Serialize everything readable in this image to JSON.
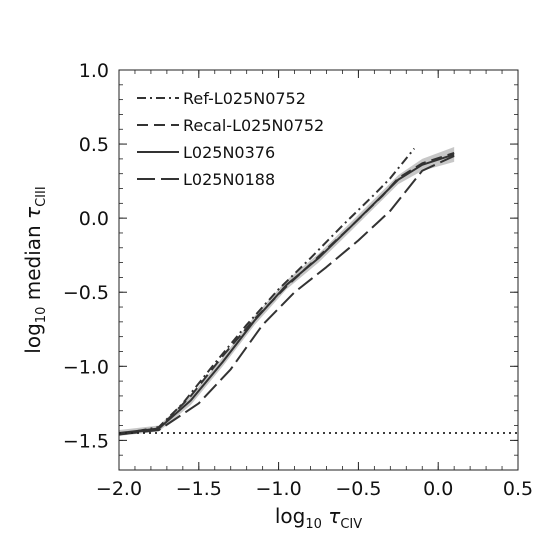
{
  "chart_data": {
    "type": "line",
    "xlabel": "log10 τCIV",
    "ylabel": "log10 median τCIII",
    "xlabel_parts": {
      "pre": "log",
      "sub": "10",
      "sym": "τ",
      "ion": "CIV"
    },
    "ylabel_parts": {
      "pre": "log",
      "sub": "10",
      "mid": "median",
      "sym": "τ",
      "ion": "CIII"
    },
    "xlim": [
      -2.0,
      0.5
    ],
    "ylim": [
      -1.7,
      1.0
    ],
    "xticks": [
      -2.0,
      -1.5,
      -1.0,
      -0.5,
      0.0,
      0.5
    ],
    "xtick_labels": [
      "−2.0",
      "−1.5",
      "−1.0",
      "−0.5",
      "0.0",
      "0.5"
    ],
    "yticks": [
      -1.5,
      -1.0,
      -0.5,
      0.0,
      0.5,
      1.0
    ],
    "ytick_labels": [
      "−1.5",
      "−1.0",
      "−0.5",
      "0.0",
      "0.5",
      "1.0"
    ],
    "grid": false,
    "legend_placement": "top-left",
    "series": [
      {
        "name": "Ref-L025N0752",
        "style": "dashdot",
        "color": "#333333",
        "x": [
          -2.0,
          -1.75,
          -1.6,
          -1.4,
          -1.2,
          -1.0,
          -0.8,
          -0.6,
          -0.4,
          -0.3,
          -0.15
        ],
        "y": [
          -1.46,
          -1.41,
          -1.25,
          -0.98,
          -0.72,
          -0.48,
          -0.27,
          -0.05,
          0.16,
          0.27,
          0.47
        ]
      },
      {
        "name": "Recal-L025N0752",
        "style": "dashed",
        "color": "#333333",
        "x": [
          -2.0,
          -1.75,
          -1.55,
          -1.35,
          -1.15,
          -0.95,
          -0.75,
          -0.55,
          -0.35,
          -0.25,
          -0.1,
          0.1
        ],
        "y": [
          -1.46,
          -1.42,
          -1.2,
          -0.93,
          -0.68,
          -0.46,
          -0.26,
          -0.06,
          0.15,
          0.27,
          0.37,
          0.44
        ]
      },
      {
        "name": "L025N0376",
        "style": "solid",
        "color": "#333333",
        "x": [
          -2.0,
          -1.75,
          -1.55,
          -1.35,
          -1.15,
          -0.95,
          -0.75,
          -0.55,
          -0.4,
          -0.25,
          -0.1,
          0.1
        ],
        "y": [
          -1.45,
          -1.42,
          -1.23,
          -0.97,
          -0.69,
          -0.45,
          -0.27,
          -0.06,
          0.1,
          0.26,
          0.36,
          0.43
        ],
        "band_upper": [
          -1.43,
          -1.4,
          -1.2,
          -0.94,
          -0.66,
          -0.42,
          -0.24,
          -0.03,
          0.13,
          0.29,
          0.4,
          0.48
        ],
        "band_lower": [
          -1.47,
          -1.44,
          -1.26,
          -1.0,
          -0.72,
          -0.48,
          -0.3,
          -0.09,
          0.07,
          0.23,
          0.32,
          0.38
        ],
        "band_color": "#bdbdbd"
      },
      {
        "name": "L025N0188",
        "style": "longdash",
        "color": "#333333",
        "x": [
          -2.0,
          -1.75,
          -1.5,
          -1.3,
          -1.1,
          -0.9,
          -0.7,
          -0.5,
          -0.3,
          -0.1,
          0.1
        ],
        "y": [
          -1.46,
          -1.43,
          -1.25,
          -1.02,
          -0.72,
          -0.5,
          -0.33,
          -0.15,
          0.05,
          0.32,
          0.42
        ]
      },
      {
        "name": "",
        "style": "dotted",
        "color": "#222222",
        "x": [
          -2.0,
          0.5
        ],
        "y": [
          -1.45,
          -1.45
        ]
      }
    ],
    "legend": [
      {
        "label": "Ref-L025N0752",
        "style": "dashdot"
      },
      {
        "label": "Recal-L025N0752",
        "style": "dashed"
      },
      {
        "label": "L025N0376",
        "style": "solid"
      },
      {
        "label": "L025N0188",
        "style": "longdash"
      }
    ]
  }
}
